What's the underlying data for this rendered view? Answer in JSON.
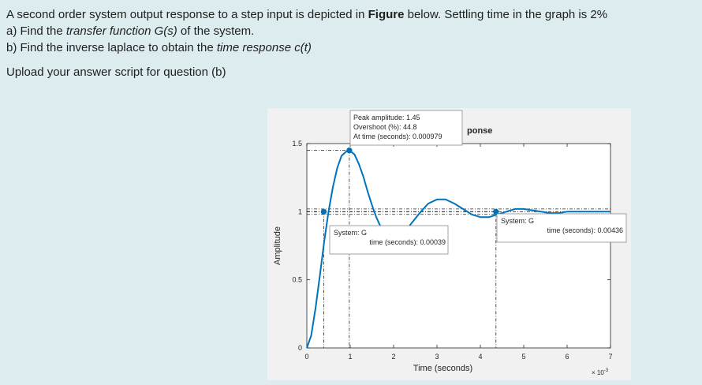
{
  "question": {
    "line1_pre": "A second order system output response to a step input is depicted in ",
    "line1_bold": "Figure",
    "line1_post": " below. Settling time in the graph is 2%",
    "a_pre": "a) Find the ",
    "a_em": "transfer function G(s)",
    "a_post": " of the system.",
    "b_pre": "b) Find the inverse laplace to obtain the ",
    "b_em": "time response c(t)",
    "upload": "Upload your answer script for question (b)"
  },
  "chart_data": {
    "type": "line",
    "title": "ponse",
    "xlabel": "Time (seconds)",
    "ylabel": "Amplitude",
    "x_multiplier": "× 10-3",
    "xlim": [
      0,
      0.007
    ],
    "ylim": [
      0,
      1.5
    ],
    "x_ticks": [
      0,
      1,
      2,
      3,
      4,
      5,
      6,
      7
    ],
    "y_ticks": [
      0,
      0.5,
      1,
      1.5
    ],
    "grid": false,
    "series": [
      {
        "name": "G",
        "x": [
          0,
          0.0001,
          0.0002,
          0.0003,
          0.0004,
          0.0005,
          0.0006,
          0.0007,
          0.0008,
          0.0009,
          0.000979,
          0.0011,
          0.0012,
          0.0013,
          0.0014,
          0.0015,
          0.0016,
          0.0017,
          0.0018,
          0.0019,
          0.002,
          0.0022,
          0.0024,
          0.0026,
          0.0028,
          0.003,
          0.0032,
          0.0034,
          0.0036,
          0.0038,
          0.004,
          0.0042,
          0.0044,
          0.0046,
          0.0048,
          0.005,
          0.0052,
          0.0054,
          0.0056,
          0.0058,
          0.006,
          0.0062,
          0.0064,
          0.0066,
          0.0068,
          0.007
        ],
        "y": [
          0,
          0.09,
          0.29,
          0.53,
          0.78,
          1.0,
          1.18,
          1.32,
          1.41,
          1.44,
          1.45,
          1.42,
          1.35,
          1.26,
          1.15,
          1.05,
          0.96,
          0.89,
          0.84,
          0.81,
          0.8,
          0.83,
          0.91,
          0.99,
          1.06,
          1.09,
          1.09,
          1.06,
          1.02,
          0.98,
          0.96,
          0.96,
          0.98,
          1.0,
          1.02,
          1.02,
          1.01,
          1.0,
          0.99,
          0.99,
          1.0,
          1.0,
          1.0,
          1.0,
          1.0,
          1.0
        ]
      }
    ],
    "markers": [
      {
        "x": 0.00039,
        "y": 1.0
      },
      {
        "x": 0.000979,
        "y": 1.45
      },
      {
        "x": 0.00436,
        "y": 1.0
      }
    ],
    "settling_band": [
      0.98,
      1.02
    ],
    "final_value": 1.0,
    "datatips": {
      "peak": {
        "line1": "Peak amplitude: 1.45",
        "line2": "Overshoot (%): 44.8",
        "line3": "At time (seconds): 0.000979"
      },
      "rise": {
        "line1": "System: G",
        "line2": "time (seconds): 0.00039"
      },
      "settle": {
        "line1": "System: G",
        "line2": "time (seconds): 0.00436"
      }
    }
  }
}
